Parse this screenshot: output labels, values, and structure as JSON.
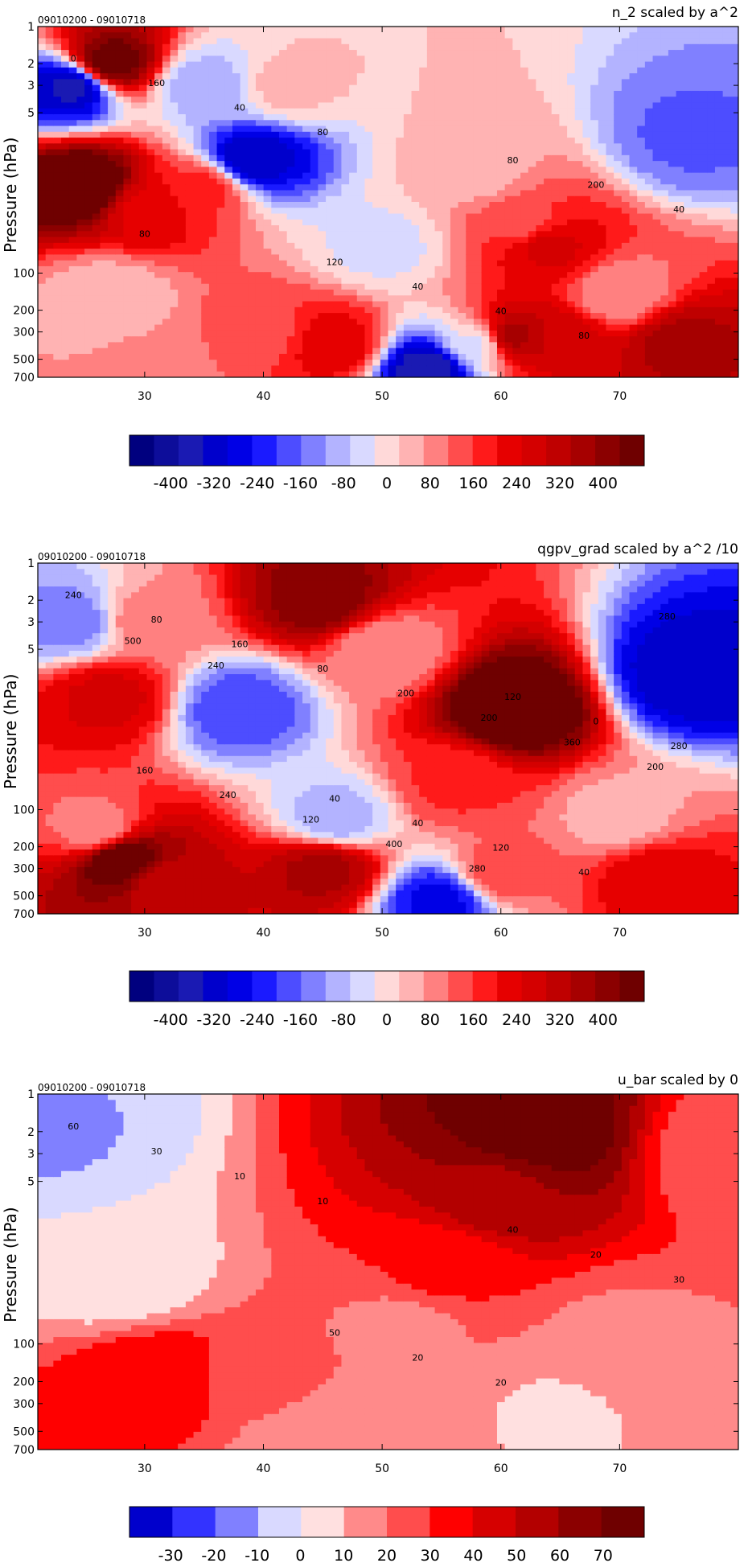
{
  "chart_data": [
    {
      "type": "heatmap",
      "title": "n_2 scaled by a^2",
      "subtitle": "09010200 - 09010718",
      "ylabel": "Pressure (hPa)",
      "xticks": [
        30,
        40,
        50,
        60,
        70
      ],
      "xlim": [
        21,
        80
      ],
      "yticks": [
        1,
        2,
        3,
        5,
        100,
        200,
        300,
        500,
        700
      ],
      "ylim": [
        1,
        700
      ],
      "yscale": "log",
      "colorbar_ticks": [
        "-400",
        "-320",
        "-240",
        "-160",
        "-80",
        "0",
        "80",
        "160",
        "240",
        "320",
        "400"
      ],
      "colorbar_range": [
        -400,
        400
      ],
      "contour_labels": [
        "0",
        "80",
        "120",
        "160",
        "200",
        "40",
        "40",
        "40",
        "40",
        "80",
        "80",
        "80"
      ],
      "features": [
        {
          "x": 25,
          "p": 20,
          "value": 450
        },
        {
          "x": 27,
          "p": 2,
          "value": 400
        },
        {
          "x": 24,
          "p": 3,
          "value": -300
        },
        {
          "x": 30,
          "p": 30,
          "value": 200
        },
        {
          "x": 35,
          "p": 20,
          "value": 150
        },
        {
          "x": 39,
          "p": 12,
          "value": -280
        },
        {
          "x": 35,
          "p": 3,
          "value": -80
        },
        {
          "x": 42,
          "p": 3,
          "value": 30
        },
        {
          "x": 58,
          "p": 15,
          "value": 40
        },
        {
          "x": 62,
          "p": 40,
          "value": 120
        },
        {
          "x": 64,
          "p": 60,
          "value": 220
        },
        {
          "x": 76,
          "p": 8,
          "value": -140
        },
        {
          "x": 50,
          "p": 60,
          "value": -30
        },
        {
          "x": 27,
          "p": 150,
          "value": 30
        },
        {
          "x": 40,
          "p": 300,
          "value": 120
        },
        {
          "x": 46,
          "p": 380,
          "value": 200
        },
        {
          "x": 61,
          "p": 330,
          "value": 300
        },
        {
          "x": 65,
          "p": 340,
          "value": 240
        },
        {
          "x": 75,
          "p": 370,
          "value": 300
        },
        {
          "x": 54,
          "p": 600,
          "value": -320
        },
        {
          "x": 58,
          "p": 380,
          "value": -30
        },
        {
          "x": 30,
          "p": 550,
          "value": 60
        },
        {
          "x": 70,
          "p": 150,
          "value": 60
        }
      ]
    },
    {
      "type": "heatmap",
      "title": "qgpv_grad scaled by a^2 /10",
      "subtitle": "09010200 - 09010718",
      "ylabel": "Pressure (hPa)",
      "xticks": [
        30,
        40,
        50,
        60,
        70
      ],
      "xlim": [
        21,
        80
      ],
      "yticks": [
        1,
        2,
        3,
        5,
        100,
        200,
        300,
        500,
        700
      ],
      "ylim": [
        1,
        700
      ],
      "yscale": "log",
      "colorbar_ticks": [
        "-400",
        "-320",
        "-240",
        "-160",
        "-80",
        "0",
        "80",
        "160",
        "240",
        "320",
        "400"
      ],
      "colorbar_range": [
        -400,
        400
      ],
      "contour_labels": [
        "240",
        "120",
        "40",
        "80",
        "0",
        "40",
        "160",
        "280",
        "120",
        "80",
        "160",
        "40",
        "200",
        "240",
        "280",
        "200",
        "120",
        "500",
        "360",
        "400",
        "240",
        "200",
        "280"
      ],
      "features": [
        {
          "x": 24,
          "p": 3,
          "value": -120
        },
        {
          "x": 27,
          "p": 12,
          "value": 220
        },
        {
          "x": 30,
          "p": 3,
          "value": 80
        },
        {
          "x": 38,
          "p": 15,
          "value": -160
        },
        {
          "x": 45,
          "p": 2,
          "value": 350
        },
        {
          "x": 50,
          "p": 5,
          "value": 60
        },
        {
          "x": 61,
          "p": 15,
          "value": 450
        },
        {
          "x": 56,
          "p": 60,
          "value": 140
        },
        {
          "x": 76,
          "p": 8,
          "value": -280
        },
        {
          "x": 46,
          "p": 120,
          "value": -80
        },
        {
          "x": 28,
          "p": 250,
          "value": 420
        },
        {
          "x": 45,
          "p": 300,
          "value": 300
        },
        {
          "x": 32,
          "p": 400,
          "value": 260
        },
        {
          "x": 55,
          "p": 550,
          "value": -220
        },
        {
          "x": 60,
          "p": 330,
          "value": 120
        },
        {
          "x": 73,
          "p": 350,
          "value": 200
        },
        {
          "x": 26,
          "p": 150,
          "value": 60
        },
        {
          "x": 70,
          "p": 120,
          "value": 40
        }
      ]
    },
    {
      "type": "heatmap",
      "title": "u_bar scaled by 0",
      "subtitle": "09010200 - 09010718",
      "ylabel": "Pressure (hPa)",
      "xticks": [
        30,
        40,
        50,
        60,
        70
      ],
      "xlim": [
        21,
        80
      ],
      "yticks": [
        1,
        2,
        3,
        5,
        100,
        200,
        300,
        500,
        700
      ],
      "ylim": [
        1,
        700
      ],
      "yscale": "log",
      "colorbar_ticks": [
        "-30",
        "-20",
        "-10",
        "0",
        "10",
        "20",
        "30",
        "40",
        "50",
        "60",
        "70"
      ],
      "colorbar_range": [
        -35,
        75
      ],
      "contour_labels": [
        "60",
        "40",
        "50",
        "30",
        "20",
        "20",
        "10",
        "30",
        "20",
        "10"
      ],
      "features": [
        {
          "x": 63,
          "p": 2,
          "value": 75
        },
        {
          "x": 60,
          "p": 6,
          "value": 55
        },
        {
          "x": 55,
          "p": 25,
          "value": 32
        },
        {
          "x": 52,
          "p": 70,
          "value": 18
        },
        {
          "x": 22,
          "p": 2,
          "value": -8
        },
        {
          "x": 28,
          "p": 30,
          "value": 5
        },
        {
          "x": 31,
          "p": 190,
          "value": 38
        },
        {
          "x": 40,
          "p": 200,
          "value": 22
        },
        {
          "x": 65,
          "p": 350,
          "value": 10
        },
        {
          "x": 45,
          "p": 600,
          "value": 12
        },
        {
          "x": 80,
          "p": 3,
          "value": 20
        },
        {
          "x": 70,
          "p": 100,
          "value": 18
        }
      ]
    }
  ]
}
